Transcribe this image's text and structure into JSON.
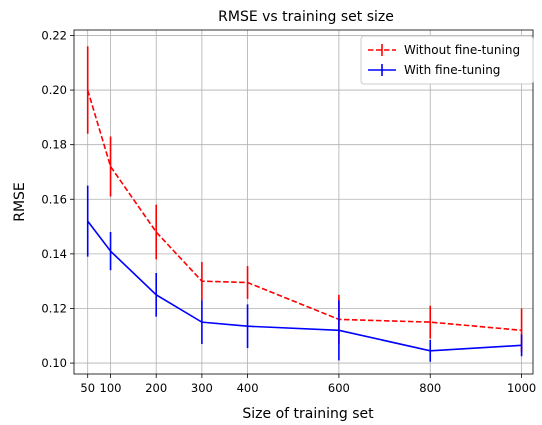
{
  "chart_data": {
    "type": "line",
    "title": "RMSE vs training set size",
    "xlabel": "Size of training set",
    "ylabel": "RMSE",
    "xlim": [
      20,
      1025
    ],
    "ylim": [
      0.096,
      0.222
    ],
    "x_ticks": [
      50,
      100,
      200,
      300,
      400,
      600,
      800,
      1000
    ],
    "y_ticks": [
      "0.10",
      "0.12",
      "0.14",
      "0.16",
      "0.18",
      "0.20",
      "0.22"
    ],
    "grid": true,
    "legend_position": "top-right",
    "x": [
      50,
      100,
      200,
      300,
      400,
      600,
      800,
      1000
    ],
    "series": [
      {
        "name": "Without fine-tuning",
        "color": "#ff0000",
        "line_style": "dashed",
        "values": [
          0.2,
          0.172,
          0.148,
          0.13,
          0.1295,
          0.116,
          0.115,
          0.112
        ],
        "error": [
          0.016,
          0.011,
          0.01,
          0.007,
          0.006,
          0.009,
          0.006,
          0.008
        ]
      },
      {
        "name": "With fine-tuning",
        "color": "#0000ff",
        "line_style": "solid",
        "values": [
          0.152,
          0.141,
          0.125,
          0.115,
          0.1135,
          0.112,
          0.1045,
          0.1065
        ],
        "error": [
          0.013,
          0.007,
          0.008,
          0.008,
          0.008,
          0.011,
          0.004,
          0.004
        ]
      }
    ]
  }
}
